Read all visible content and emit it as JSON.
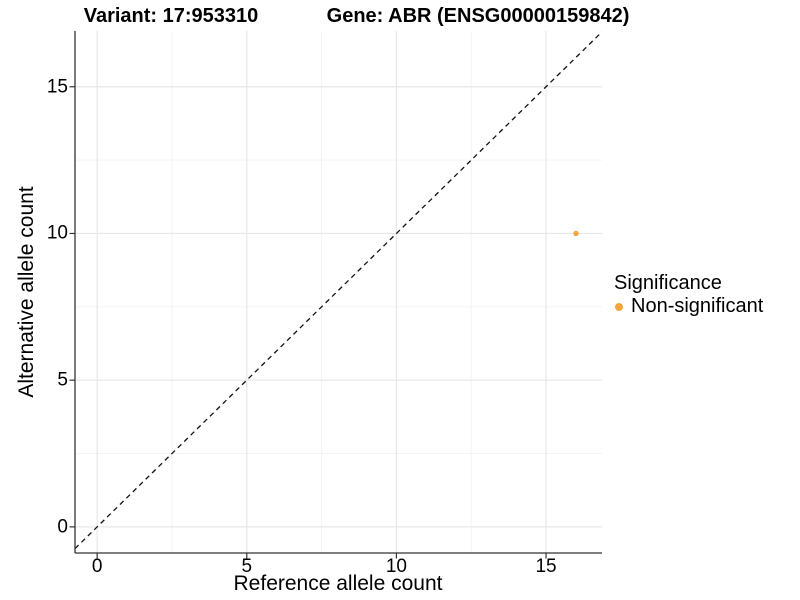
{
  "titles": {
    "variant": "Variant: 17:953310",
    "gene": "Gene: ABR (ENSG00000159842)"
  },
  "axes": {
    "x": {
      "label": "Reference allele count",
      "tick_labels": [
        "0",
        "5",
        "10",
        "15"
      ]
    },
    "y": {
      "label": "Alternative allele count",
      "tick_labels": [
        "0",
        "5",
        "10",
        "15"
      ]
    }
  },
  "legend": {
    "title": "Significance",
    "items": [
      {
        "label": "Non-significant",
        "color": "#F7A43F",
        "marker": "circle-icon"
      }
    ]
  },
  "colors": {
    "point": "#F7A43F",
    "axis_line": "#333333",
    "tick_mark": "#333333",
    "grid_major": "#E7E7E7",
    "grid_minor": "#F2F2F2",
    "reference_line": "#111111",
    "background": "#FFFFFF"
  },
  "chart_data": {
    "type": "scatter",
    "title": "Variant: 17:953310 — Gene: ABR (ENSG00000159842)",
    "xlabel": "Reference allele count",
    "ylabel": "Alternative allele count",
    "xlim": [
      -0.74,
      16.87
    ],
    "ylim": [
      -0.89,
      16.9
    ],
    "x_ticks": [
      0,
      5,
      10,
      15
    ],
    "y_ticks": [
      0,
      5,
      10,
      15
    ],
    "x_minor_ticks": [
      2.5,
      7.5,
      12.5
    ],
    "y_minor_ticks": [
      2.5,
      7.5,
      12.5
    ],
    "grid": true,
    "legend_position": "right",
    "series": [
      {
        "name": "Non-significant",
        "color": "#F7A43F",
        "points": [
          {
            "x": 16,
            "y": 10
          }
        ]
      }
    ],
    "reference_line": {
      "type": "identity",
      "equation": "y = x",
      "style": "dashed",
      "color": "#111111"
    }
  }
}
